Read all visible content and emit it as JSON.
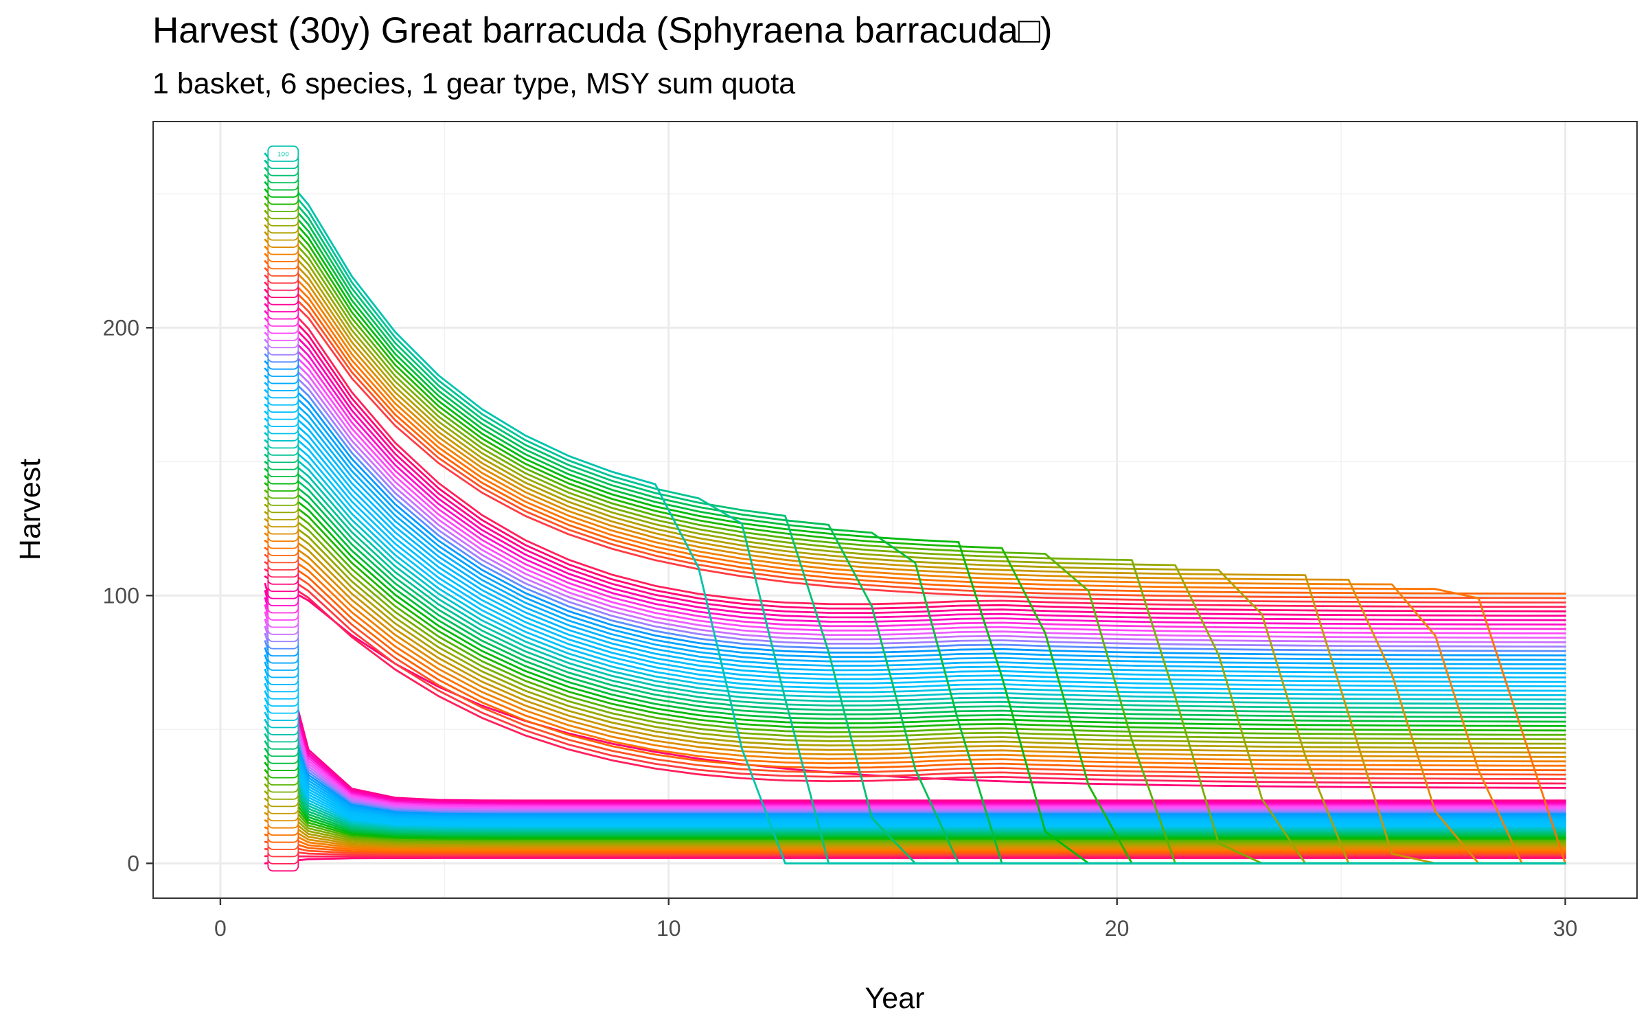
{
  "chart_data": {
    "type": "line",
    "title": "Harvest (30y) Great barracuda (Sphyraena barracuda□)",
    "subtitle": "1 basket, 6 species, 1 gear type, MSY sum quota",
    "xlabel": "Year",
    "ylabel": "Harvest",
    "xlim": [
      -1.5,
      31.6
    ],
    "ylim": [
      -13,
      277
    ],
    "xticks": [
      0,
      10,
      20,
      30
    ],
    "yticks": [
      0,
      100,
      200
    ],
    "x_minor_ticks": [
      5,
      15,
      25
    ],
    "y_minor_ticks": [
      50,
      150,
      250
    ],
    "grid": true,
    "legend": "none",
    "series_count": 100,
    "label_x": 1.4,
    "top_label": "100",
    "x_start": 1,
    "x_end": 30,
    "initial_harvest_range": [
      0,
      265
    ],
    "surviving_final_harvest_range": [
      2,
      126
    ],
    "collapse_series_range": [
      85,
      100
    ],
    "collapse_years": [
      11,
      30
    ],
    "color_scheme": "hue palette (red-orange, olive, green, teal, blue, violet, magenta)"
  }
}
